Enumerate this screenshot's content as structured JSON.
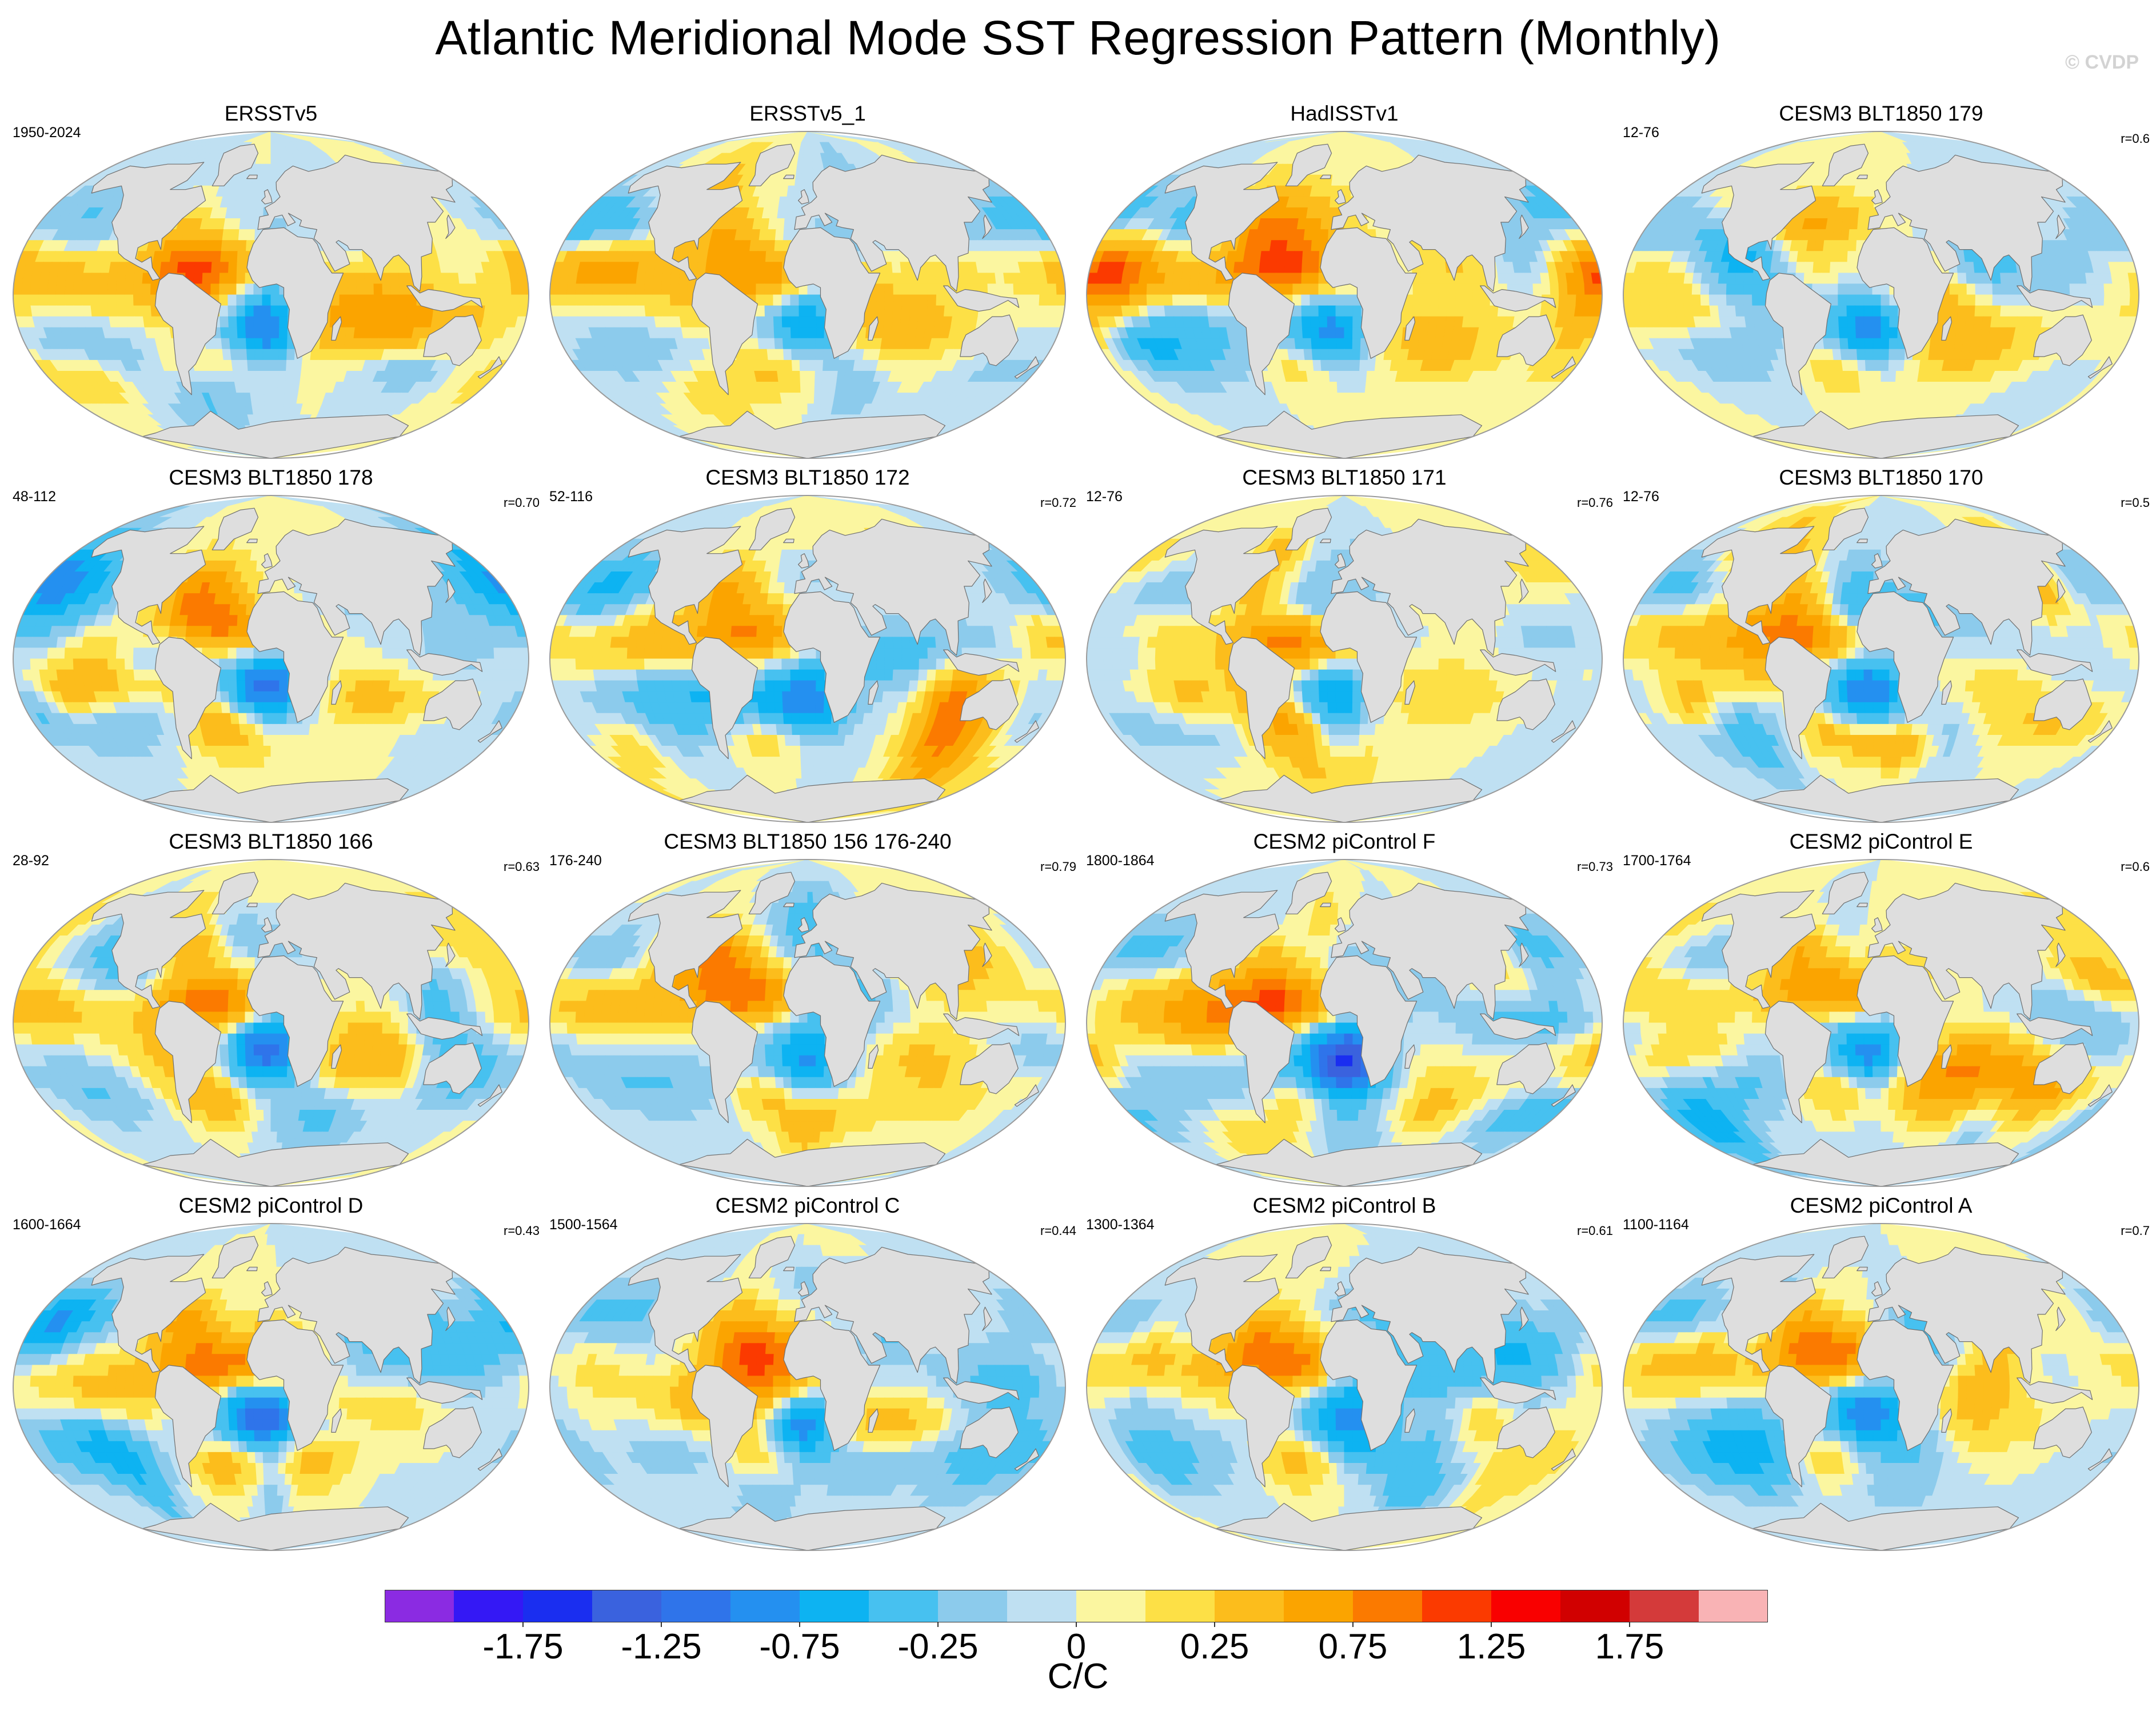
{
  "title": "Atlantic Meridional Mode SST Regression Pattern (Monthly)",
  "watermark": "© CVDP",
  "colors": {
    "land": "#dedede",
    "coast": "#6f6f6f",
    "outline": "#9a9a9a"
  },
  "chart_data": {
    "type": "heatmap",
    "projection": "Robinson (global, land masked)",
    "variable": "SST regression onto Atlantic Meridional Mode index",
    "units": "C/C",
    "legend_position": "bottom",
    "levels": [
      -2.0,
      -1.75,
      -1.5,
      -1.25,
      -1.0,
      -0.75,
      -0.5,
      -0.25,
      -0.1,
      0,
      0.1,
      0.25,
      0.5,
      0.75,
      1.0,
      1.25,
      1.5,
      1.75,
      2.0
    ],
    "colorbar_colors": [
      "#8b2be2",
      "#3418f5",
      "#1a2ef0",
      "#3a62de",
      "#2f74ea",
      "#2490f0",
      "#0db3f2",
      "#47c1f0",
      "#8ccbec",
      "#bfe0f2",
      "#fbf6a0",
      "#fde046",
      "#fcbd1c",
      "#fba400",
      "#fb7a00",
      "#fb3a00",
      "#f90000",
      "#d10000",
      "#d43a3a",
      "#f9b3b5"
    ],
    "tick_labels": [
      "-1.75",
      "-1.25",
      "-0.75",
      "-0.25",
      "0",
      "0.25",
      "0.75",
      "1.25",
      "1.75"
    ],
    "tick_positions": [
      1,
      3,
      5,
      7,
      9,
      11,
      13,
      15,
      17
    ],
    "colorbar_label": "C/C",
    "panels": [
      {
        "title": "ERSSTv5",
        "period": "1950-2024",
        "r": "",
        "pattern": 0
      },
      {
        "title": "ERSSTv5_1",
        "period": "",
        "r": "",
        "pattern": 1
      },
      {
        "title": "HadISSTv1",
        "period": "",
        "r": "",
        "pattern": 2
      },
      {
        "title": "CESM3 BLT1850 179",
        "period": "12-76",
        "r": "r=0.6",
        "pattern": 3
      },
      {
        "title": "CESM3 BLT1850 178",
        "period": "48-112",
        "r": "r=0.70",
        "pattern": 4
      },
      {
        "title": "CESM3 BLT1850 172",
        "period": "52-116",
        "r": "r=0.72",
        "pattern": 5
      },
      {
        "title": "CESM3 BLT1850 171",
        "period": "12-76",
        "r": "r=0.76",
        "pattern": 6
      },
      {
        "title": "CESM3 BLT1850 170",
        "period": "12-76",
        "r": "r=0.5",
        "pattern": 7
      },
      {
        "title": "CESM3 BLT1850 166",
        "period": "28-92",
        "r": "r=0.63",
        "pattern": 8
      },
      {
        "title": "CESM3 BLT1850 156 176-240",
        "period": "176-240",
        "r": "r=0.79",
        "pattern": 9
      },
      {
        "title": "CESM2 piControl F",
        "period": "1800-1864",
        "r": "r=0.73",
        "pattern": 10
      },
      {
        "title": "CESM2 piControl E",
        "period": "1700-1764",
        "r": "r=0.6",
        "pattern": 11
      },
      {
        "title": "CESM2 piControl D",
        "period": "1600-1664",
        "r": "r=0.43",
        "pattern": 12
      },
      {
        "title": "CESM2 piControl C",
        "period": "1500-1564",
        "r": "r=0.44",
        "pattern": 13
      },
      {
        "title": "CESM2 piControl B",
        "period": "1300-1364",
        "r": "r=0.61",
        "pattern": 14
      },
      {
        "title": "CESM2 piControl A",
        "period": "1100-1164",
        "r": "r=0.7",
        "pattern": 15
      }
    ]
  }
}
